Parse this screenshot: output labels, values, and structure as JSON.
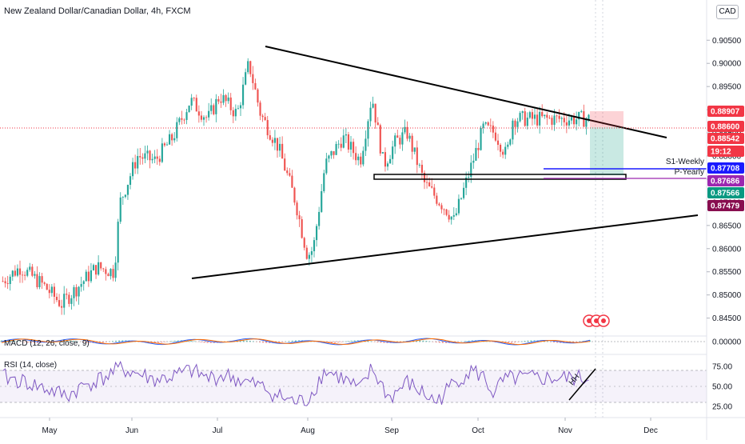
{
  "header": {
    "symbol_title": "New Zealand Dollar/Canadian Dollar, 4h, FXCM",
    "currency_button": "CAD"
  },
  "colors": {
    "up": "#26a69a",
    "down": "#ef5350",
    "trendline": "#000000",
    "rsi_line": "#7e57c2",
    "macd_line": "#2962ff",
    "signal_line": "#ff6d00",
    "blue_level": "#1a1aff",
    "purple_level": "#9c27b0"
  },
  "indicators": {
    "macd_label": "MACD (12, 26, close, 9)",
    "rsi_label": "RSI (14, close)",
    "rsi_note": "HH"
  },
  "chart_data": {
    "type": "candlestick",
    "title": "New Zealand Dollar/Canadian Dollar, 4h, FXCM",
    "x_ticks": [
      "May",
      "Jun",
      "Jul",
      "Aug",
      "Sep",
      "Oct",
      "Nov",
      "Dec"
    ],
    "y_ticks": [
      "0.90500",
      "0.90000",
      "0.89500",
      "0.89000",
      "0.88500",
      "0.88000",
      "0.87500",
      "0.87000",
      "0.86500",
      "0.86000",
      "0.85500",
      "0.85000",
      "0.84500"
    ],
    "ylim": [
      0.842,
      0.9085
    ],
    "price_path": [
      [
        0,
        0.853
      ],
      [
        0.03,
        0.856
      ],
      [
        0.07,
        0.852
      ],
      [
        0.1,
        0.848
      ],
      [
        0.13,
        0.852
      ],
      [
        0.16,
        0.856
      ],
      [
        0.19,
        0.855
      ],
      [
        0.2,
        0.87
      ],
      [
        0.23,
        0.88
      ],
      [
        0.26,
        0.879
      ],
      [
        0.29,
        0.884
      ],
      [
        0.32,
        0.892
      ],
      [
        0.35,
        0.888
      ],
      [
        0.37,
        0.893
      ],
      [
        0.4,
        0.889
      ],
      [
        0.42,
        0.9
      ],
      [
        0.44,
        0.889
      ],
      [
        0.47,
        0.882
      ],
      [
        0.5,
        0.87
      ],
      [
        0.51,
        0.864
      ],
      [
        0.52,
        0.8585
      ],
      [
        0.53,
        0.86
      ],
      [
        0.55,
        0.878
      ],
      [
        0.58,
        0.884
      ],
      [
        0.61,
        0.879
      ],
      [
        0.63,
        0.893
      ],
      [
        0.65,
        0.878
      ],
      [
        0.67,
        0.883
      ],
      [
        0.69,
        0.885
      ],
      [
        0.72,
        0.874
      ],
      [
        0.74,
        0.871
      ],
      [
        0.76,
        0.868
      ],
      [
        0.77,
        0.866
      ],
      [
        0.8,
        0.878
      ],
      [
        0.82,
        0.886
      ],
      [
        0.84,
        0.885
      ],
      [
        0.86,
        0.88
      ],
      [
        0.87,
        0.888
      ]
    ],
    "rsi_path": [
      [
        0,
        62
      ],
      [
        0.04,
        55
      ],
      [
        0.08,
        45
      ],
      [
        0.11,
        38
      ],
      [
        0.14,
        52
      ],
      [
        0.17,
        60
      ],
      [
        0.2,
        72
      ],
      [
        0.23,
        66
      ],
      [
        0.26,
        58
      ],
      [
        0.29,
        62
      ],
      [
        0.32,
        70
      ],
      [
        0.35,
        60
      ],
      [
        0.38,
        64
      ],
      [
        0.41,
        56
      ],
      [
        0.44,
        50
      ],
      [
        0.47,
        38
      ],
      [
        0.5,
        30
      ],
      [
        0.52,
        33
      ],
      [
        0.55,
        70
      ],
      [
        0.58,
        60
      ],
      [
        0.61,
        45
      ],
      [
        0.63,
        72
      ],
      [
        0.66,
        35
      ],
      [
        0.69,
        55
      ],
      [
        0.72,
        40
      ],
      [
        0.74,
        30
      ],
      [
        0.77,
        55
      ],
      [
        0.8,
        70
      ],
      [
        0.82,
        62
      ],
      [
        0.84,
        38
      ],
      [
        0.85,
        55
      ],
      [
        0.87,
        60
      ]
    ],
    "rsi_ticks": [
      "75.00",
      "50.00",
      "25.00"
    ],
    "macd_tick": "0.00000",
    "price_labels": [
      {
        "text": "0.88907",
        "color": "#f23645"
      },
      {
        "text": "0.88600",
        "color": "#f23645"
      },
      {
        "text": "0.88542",
        "color": "#f23645"
      },
      {
        "text": "19:12",
        "color": "#f23645"
      },
      {
        "text": "0.87708",
        "color": "#1a1aff"
      },
      {
        "text": "0.87686",
        "color": "#9c27b0"
      },
      {
        "text": "0.87566",
        "color": "#089981"
      },
      {
        "text": "0.87479",
        "color": "#880e4f"
      }
    ],
    "level_labels": {
      "weekly": "S1-Weekly",
      "yearly": "P-Yearly"
    }
  }
}
